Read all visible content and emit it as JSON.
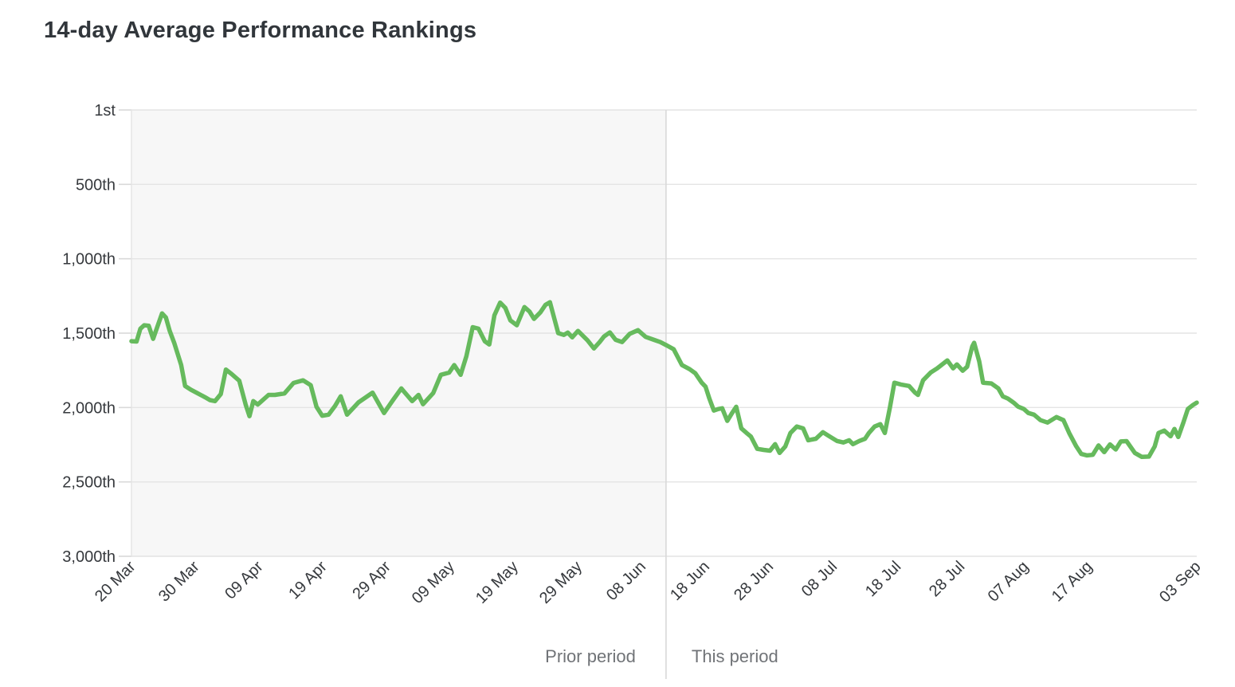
{
  "page": {
    "title": "14-day Average Performance Rankings"
  },
  "legend": {
    "prior_label": "Prior period",
    "this_label": "This period"
  },
  "colors": {
    "line": "#66ba5d",
    "prior_bg": "#f7f7f7",
    "grid": "#e4e4e4",
    "tick": "#d9d9d9",
    "divider": "#d9d9d9",
    "axis_text": "#36393d",
    "legend_text": "#707377",
    "title_text": "#31363b"
  },
  "chart_data": {
    "type": "line",
    "title": "14-day Average Performance Rankings",
    "xlabel": "",
    "ylabel": "",
    "grid": true,
    "legend_position": "bottom",
    "y_axis": {
      "inverted": true,
      "tick_labels": [
        "1st",
        "500th",
        "1,000th",
        "1,500th",
        "2,000th",
        "2,500th",
        "3,000th"
      ],
      "tick_values": [
        1,
        500,
        1000,
        1500,
        2000,
        2500,
        3000
      ],
      "range": [
        1,
        3000
      ]
    },
    "x_axis": {
      "total_days": 167,
      "tick_days": [
        0,
        10,
        20,
        30,
        40,
        50,
        60,
        70,
        80,
        90,
        100,
        110,
        120,
        130,
        140,
        150,
        167
      ],
      "tick_labels": [
        "20 Mar",
        "30 Mar",
        "09 Apr",
        "19 Apr",
        "29 Apr",
        "09 May",
        "19 May",
        "29 May",
        "08 Jun",
        "18 Jun",
        "28 Jun",
        "08 Jul",
        "18 Jul",
        "28 Jul",
        "07 Aug",
        "17 Aug",
        "03 Sep"
      ]
    },
    "divider_day": 83.8,
    "series": [
      {
        "name": "Prior period",
        "points": [
          [
            0,
            1554
          ],
          [
            0.8,
            1556
          ],
          [
            1.4,
            1470
          ],
          [
            2,
            1447
          ],
          [
            2.7,
            1450
          ],
          [
            3.4,
            1538
          ],
          [
            4.2,
            1440
          ],
          [
            4.8,
            1367
          ],
          [
            5.4,
            1395
          ],
          [
            6,
            1485
          ],
          [
            6.7,
            1565
          ],
          [
            7.8,
            1715
          ],
          [
            8.4,
            1855
          ],
          [
            9.3,
            1880
          ],
          [
            10.3,
            1903
          ],
          [
            11.5,
            1930
          ],
          [
            12.3,
            1950
          ],
          [
            13.1,
            1957
          ],
          [
            14,
            1910
          ],
          [
            14.8,
            1745
          ],
          [
            15.7,
            1775
          ],
          [
            16.9,
            1820
          ],
          [
            17.9,
            1980
          ],
          [
            18.5,
            2058
          ],
          [
            19.1,
            1957
          ],
          [
            19.8,
            1980
          ],
          [
            20.4,
            1957
          ],
          [
            21.5,
            1915
          ],
          [
            22.5,
            1915
          ],
          [
            24,
            1905
          ],
          [
            25.4,
            1835
          ],
          [
            26.9,
            1817
          ],
          [
            28.1,
            1850
          ],
          [
            29,
            1995
          ],
          [
            29.9,
            2055
          ],
          [
            30.9,
            2048
          ],
          [
            31.9,
            1990
          ],
          [
            32.8,
            1925
          ],
          [
            33.8,
            2048
          ],
          [
            35.6,
            1965
          ],
          [
            37.8,
            1900
          ],
          [
            39.6,
            2037
          ],
          [
            41,
            1950
          ],
          [
            42.3,
            1872
          ],
          [
            44,
            1957
          ],
          [
            45,
            1915
          ],
          [
            45.7,
            1978
          ],
          [
            47.3,
            1903
          ],
          [
            48.5,
            1780
          ],
          [
            49.8,
            1765
          ],
          [
            50.6,
            1715
          ],
          [
            51.6,
            1780
          ],
          [
            52.5,
            1656
          ],
          [
            53.5,
            1460
          ],
          [
            54.4,
            1470
          ],
          [
            55.4,
            1555
          ],
          [
            56.1,
            1576
          ],
          [
            56.9,
            1380
          ],
          [
            57.8,
            1295
          ],
          [
            58.6,
            1330
          ],
          [
            59.4,
            1415
          ],
          [
            60.4,
            1447
          ],
          [
            61.6,
            1325
          ],
          [
            62.4,
            1355
          ],
          [
            63.1,
            1404
          ],
          [
            64.1,
            1360
          ],
          [
            64.9,
            1310
          ],
          [
            65.6,
            1292
          ],
          [
            66.4,
            1420
          ],
          [
            66.9,
            1500
          ],
          [
            67.8,
            1512
          ],
          [
            68.4,
            1496
          ],
          [
            69.1,
            1528
          ],
          [
            70,
            1485
          ],
          [
            71.5,
            1549
          ],
          [
            72.5,
            1603
          ],
          [
            73.4,
            1560
          ],
          [
            74.1,
            1522
          ],
          [
            75,
            1495
          ],
          [
            75.9,
            1545
          ],
          [
            76.9,
            1560
          ],
          [
            78.1,
            1505
          ],
          [
            79.4,
            1480
          ],
          [
            80.6,
            1525
          ],
          [
            81.9,
            1545
          ],
          [
            82.9,
            1560
          ],
          [
            83.8,
            1580
          ]
        ]
      },
      {
        "name": "This period",
        "points": [
          [
            83.8,
            1580
          ],
          [
            85,
            1608
          ],
          [
            86.3,
            1715
          ],
          [
            87.5,
            1742
          ],
          [
            88.4,
            1770
          ],
          [
            89.4,
            1833
          ],
          [
            90,
            1860
          ],
          [
            90.6,
            1940
          ],
          [
            91.3,
            2020
          ],
          [
            92,
            2010
          ],
          [
            92.6,
            2005
          ],
          [
            93.4,
            2090
          ],
          [
            94.1,
            2040
          ],
          [
            94.8,
            1995
          ],
          [
            95.6,
            2140
          ],
          [
            96.4,
            2170
          ],
          [
            97.1,
            2195
          ],
          [
            98.1,
            2278
          ],
          [
            99.1,
            2285
          ],
          [
            100.1,
            2290
          ],
          [
            100.9,
            2246
          ],
          [
            101.6,
            2305
          ],
          [
            102.5,
            2262
          ],
          [
            103.3,
            2171
          ],
          [
            104.3,
            2128
          ],
          [
            105.3,
            2140
          ],
          [
            106.1,
            2220
          ],
          [
            107.3,
            2210
          ],
          [
            108.4,
            2166
          ],
          [
            109.4,
            2193
          ],
          [
            110.6,
            2225
          ],
          [
            111.6,
            2235
          ],
          [
            112.5,
            2220
          ],
          [
            113.1,
            2246
          ],
          [
            114.1,
            2225
          ],
          [
            115,
            2210
          ],
          [
            115.6,
            2171
          ],
          [
            116.5,
            2128
          ],
          [
            117.4,
            2112
          ],
          [
            118.1,
            2171
          ],
          [
            118.9,
            2000
          ],
          [
            119.6,
            1833
          ],
          [
            120.6,
            1845
          ],
          [
            121.9,
            1855
          ],
          [
            122.8,
            1898
          ],
          [
            123.3,
            1915
          ],
          [
            124.1,
            1817
          ],
          [
            125.3,
            1764
          ],
          [
            126.3,
            1737
          ],
          [
            127.9,
            1683
          ],
          [
            128.8,
            1737
          ],
          [
            129.4,
            1710
          ],
          [
            130.3,
            1753
          ],
          [
            131,
            1726
          ],
          [
            131.8,
            1590
          ],
          [
            132.1,
            1565
          ],
          [
            132.9,
            1690
          ],
          [
            133.5,
            1833
          ],
          [
            134.8,
            1838
          ],
          [
            135.9,
            1872
          ],
          [
            136.6,
            1925
          ],
          [
            137.4,
            1940
          ],
          [
            138.3,
            1967
          ],
          [
            139,
            1994
          ],
          [
            139.9,
            2010
          ],
          [
            140.6,
            2037
          ],
          [
            141.5,
            2048
          ],
          [
            142.5,
            2085
          ],
          [
            143.6,
            2101
          ],
          [
            145,
            2064
          ],
          [
            146.1,
            2085
          ],
          [
            147,
            2171
          ],
          [
            148.1,
            2260
          ],
          [
            148.9,
            2312
          ],
          [
            149.8,
            2322
          ],
          [
            150.7,
            2318
          ],
          [
            151.6,
            2255
          ],
          [
            152.5,
            2300
          ],
          [
            153.4,
            2248
          ],
          [
            154.3,
            2282
          ],
          [
            155.1,
            2228
          ],
          [
            156,
            2226
          ],
          [
            157.3,
            2305
          ],
          [
            158.4,
            2332
          ],
          [
            159.5,
            2330
          ],
          [
            160.4,
            2262
          ],
          [
            161,
            2171
          ],
          [
            161.9,
            2155
          ],
          [
            162.9,
            2193
          ],
          [
            163.5,
            2144
          ],
          [
            164.1,
            2198
          ],
          [
            164.9,
            2101
          ],
          [
            165.6,
            2010
          ],
          [
            166.4,
            1983
          ],
          [
            167,
            1967
          ]
        ]
      }
    ]
  }
}
